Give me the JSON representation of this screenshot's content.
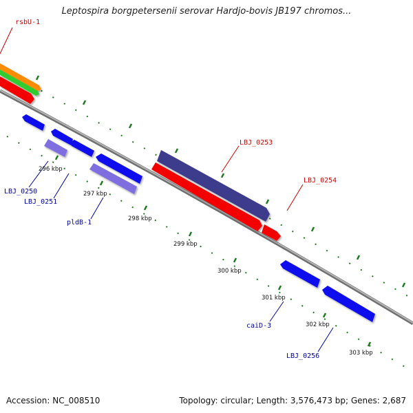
{
  "title": "Leptospira borgpetersenii serovar Hardjo-bovis JB197 chromos...",
  "footer": {
    "accession": "Accession: NC_008510",
    "topology": "Topology: circular; Length: 3,576,473 bp; Genes: 2,687"
  },
  "colors": {
    "backbone": "#8a8a8a",
    "tick": "#1e7a1e",
    "forward_label": "#cc0000",
    "reverse_label": "#0000a0",
    "gene_blue": "#1010ee",
    "gene_red": "#f40000",
    "gene_purple": "#3d3a8c",
    "gene_lavender": "#7f6ee0",
    "gene_orange": "#ff8c00",
    "gene_green": "#33cc33"
  },
  "position_labels": [
    "296 kbp",
    "297 kbp",
    "298 kbp",
    "299 kbp",
    "300 kbp",
    "301 kbp",
    "302 kbp",
    "303 kbp"
  ],
  "gene_labels": {
    "forward": [
      "rsbU-1",
      "LBJ_0253",
      "LBJ_0254"
    ],
    "reverse": [
      "LBJ_0250",
      "LBJ_0251",
      "pldB-1",
      "caiD-3",
      "LBJ_0256"
    ]
  }
}
